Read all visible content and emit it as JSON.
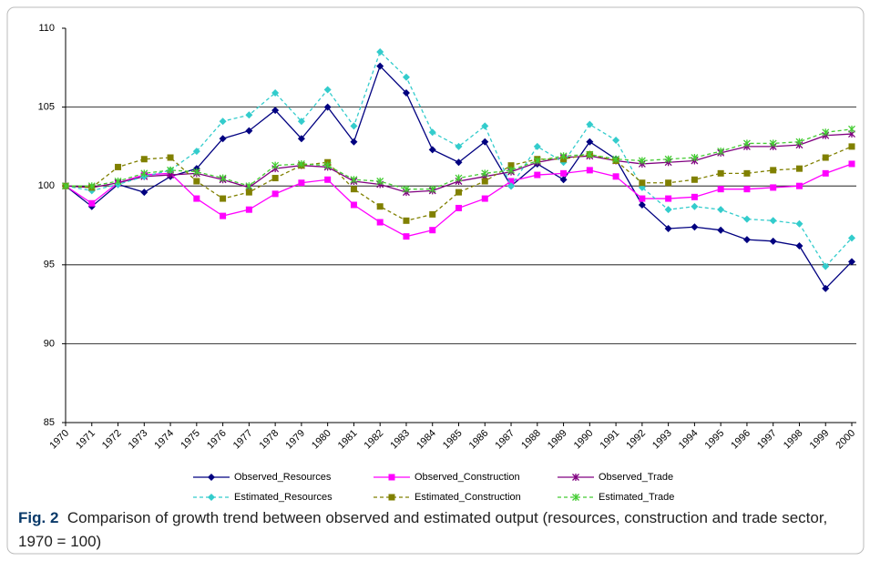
{
  "chart_data": {
    "type": "line",
    "caption_label": "Fig. 2",
    "caption": "Comparison of growth trend between observed and estimated output (resources, construction and trade sector, 1970 = 100)",
    "categories": [
      "1970",
      "1971",
      "1972",
      "1973",
      "1974",
      "1975",
      "1976",
      "1977",
      "1978",
      "1979",
      "1980",
      "1981",
      "1982",
      "1983",
      "1984",
      "1985",
      "1986",
      "1987",
      "1988",
      "1989",
      "1990",
      "1991",
      "1992",
      "1993",
      "1994",
      "1995",
      "1996",
      "1997",
      "1998",
      "1999",
      "2000"
    ],
    "ylim": [
      85,
      110
    ],
    "yticks": [
      85,
      90,
      95,
      100,
      105,
      110
    ],
    "grid": true,
    "legend": "bottom",
    "series": [
      {
        "name": "Observed_Resources",
        "color": "#000080",
        "marker": "diamond",
        "dashed": false,
        "values": [
          100,
          98.7,
          100.1,
          99.6,
          100.6,
          101.1,
          103.0,
          103.5,
          104.8,
          103.0,
          105.0,
          102.8,
          107.6,
          105.9,
          102.3,
          101.5,
          102.8,
          100.0,
          101.4,
          100.4,
          102.8,
          101.7,
          98.8,
          97.3,
          97.4,
          97.2,
          96.6,
          96.5,
          96.2,
          93.5,
          95.2
        ]
      },
      {
        "name": "Observed_Construction",
        "color": "#ff00ff",
        "marker": "square",
        "dashed": false,
        "values": [
          100,
          98.9,
          100.2,
          100.7,
          100.8,
          99.2,
          98.1,
          98.5,
          99.5,
          100.2,
          100.4,
          98.8,
          97.7,
          96.8,
          97.2,
          98.6,
          99.2,
          100.3,
          100.7,
          100.8,
          101.0,
          100.6,
          99.2,
          99.2,
          99.3,
          99.8,
          99.8,
          99.9,
          100.0,
          100.8,
          101.4
        ]
      },
      {
        "name": "Observed_Trade",
        "color": "#800080",
        "marker": "star",
        "dashed": false,
        "values": [
          100,
          99.9,
          100.2,
          100.6,
          100.7,
          100.8,
          100.4,
          99.9,
          101.1,
          101.3,
          101.2,
          100.3,
          100.1,
          99.6,
          99.7,
          100.3,
          100.6,
          100.9,
          101.5,
          101.8,
          101.9,
          101.6,
          101.4,
          101.5,
          101.6,
          102.1,
          102.5,
          102.5,
          102.6,
          103.2,
          103.3
        ]
      },
      {
        "name": "Estimated_Resources",
        "color": "#33cccc",
        "marker": "diamond",
        "dashed": true,
        "values": [
          100,
          99.7,
          100.1,
          100.6,
          101.0,
          102.2,
          104.1,
          104.5,
          105.9,
          104.1,
          106.1,
          103.8,
          108.5,
          106.9,
          103.4,
          102.5,
          103.8,
          100.0,
          102.5,
          101.5,
          103.9,
          102.9,
          99.9,
          98.5,
          98.7,
          98.5,
          97.9,
          97.8,
          97.6,
          94.9,
          96.7
        ]
      },
      {
        "name": "Estimated_Construction",
        "color": "#808000",
        "marker": "square",
        "dashed": true,
        "values": [
          100,
          99.9,
          101.2,
          101.7,
          101.8,
          100.3,
          99.2,
          99.6,
          100.5,
          101.3,
          101.5,
          99.8,
          98.7,
          97.8,
          98.2,
          99.6,
          100.3,
          101.3,
          101.7,
          101.7,
          102.0,
          101.6,
          100.2,
          100.2,
          100.4,
          100.8,
          100.8,
          101.0,
          101.1,
          101.8,
          102.5
        ]
      },
      {
        "name": "Estimated_Trade",
        "color": "#44cc33",
        "marker": "star",
        "dashed": true,
        "values": [
          100,
          100.0,
          100.3,
          100.8,
          101.0,
          100.9,
          100.5,
          100.0,
          101.3,
          101.4,
          101.3,
          100.4,
          100.3,
          99.8,
          99.8,
          100.5,
          100.8,
          101.0,
          101.6,
          101.9,
          102.0,
          101.7,
          101.6,
          101.7,
          101.8,
          102.2,
          102.7,
          102.7,
          102.8,
          103.4,
          103.6
        ]
      }
    ]
  }
}
